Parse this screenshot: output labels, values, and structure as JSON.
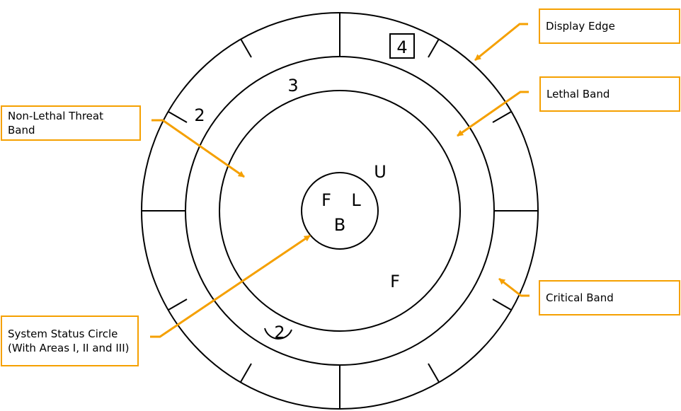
{
  "colors": {
    "callout_accent": "#f5a000",
    "line": "#000000",
    "background": "#ffffff"
  },
  "callouts": {
    "display_edge": "Display Edge",
    "lethal_band": "Lethal Band",
    "non_lethal_threat_band": "Non-Lethal Threat Band",
    "critical_band": "Critical Band",
    "system_status_circle": "System Status Circle\n(With Areas I, II and III)"
  },
  "symbols": {
    "boxed_4": "4",
    "outer_2": "2",
    "lethal_3": "3",
    "center_F": "F",
    "center_L": "L",
    "center_B": "B",
    "symbol_U": "U",
    "symbol_F": "F",
    "hat_2": "2"
  }
}
